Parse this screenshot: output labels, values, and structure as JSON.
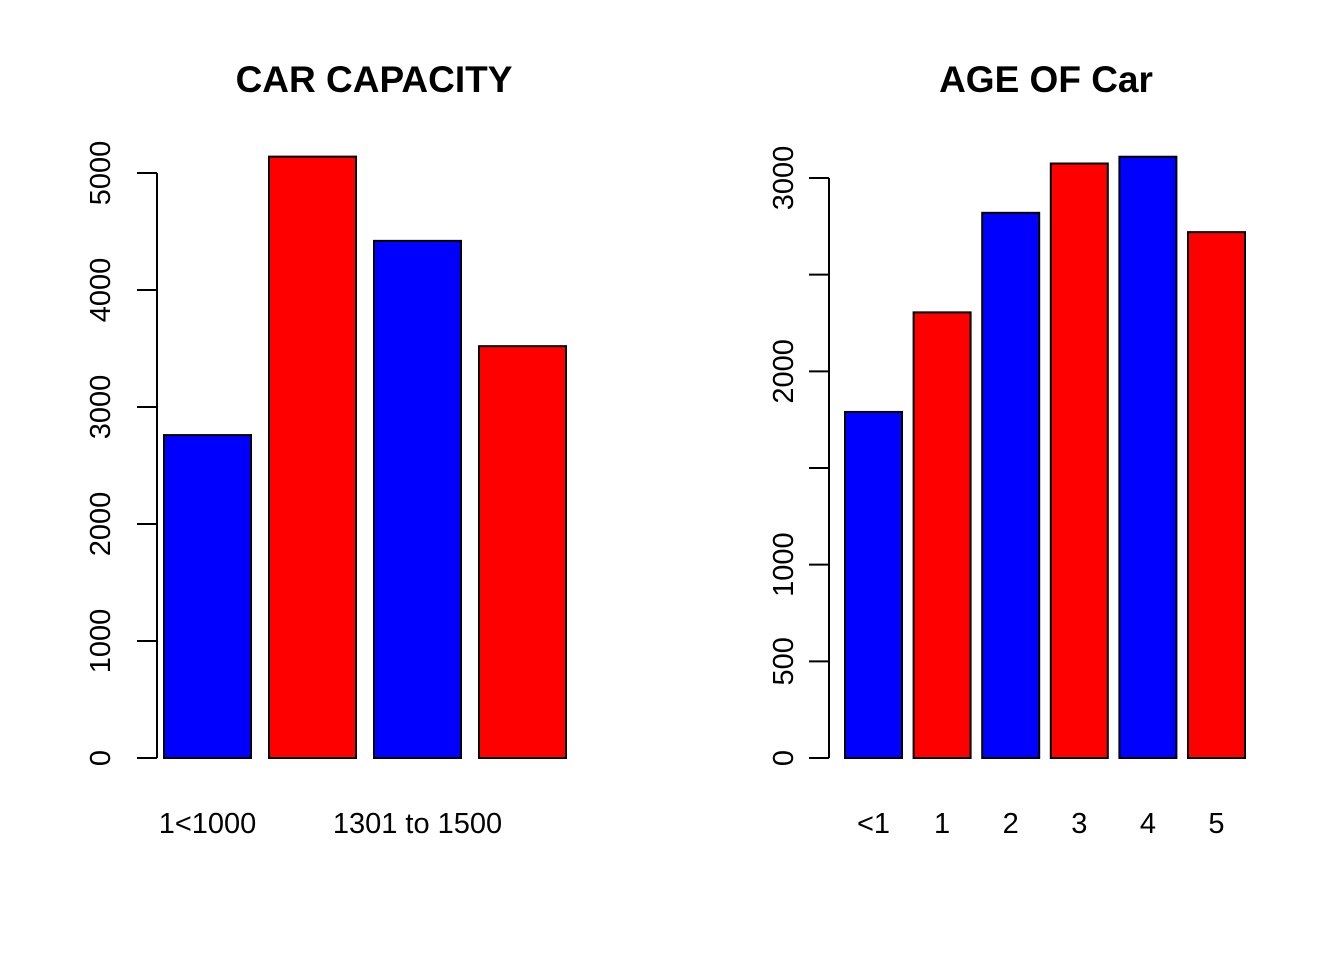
{
  "chart_data": [
    {
      "type": "bar",
      "title": "CAR CAPACITY",
      "categories": [
        "1<1000",
        "",
        "1301 to 1500",
        ""
      ],
      "values": [
        2760,
        5140,
        4420,
        3520
      ],
      "colors": [
        "#0000FF",
        "#FF0000",
        "#0000FF",
        "#FF0000"
      ],
      "ylim": [
        0,
        5000
      ],
      "yticks": [
        0,
        1000,
        2000,
        3000,
        4000,
        5000
      ],
      "ytick_labels": [
        "0",
        "1000",
        "2000",
        "3000",
        "4000",
        "5000"
      ],
      "xlabel": "",
      "ylabel": "",
      "grid": false,
      "legend": false
    },
    {
      "type": "bar",
      "title": "AGE OF Car",
      "categories": [
        "<1",
        "1",
        "2",
        "3",
        "4",
        "5"
      ],
      "values": [
        1790,
        2305,
        2820,
        3075,
        3110,
        2720
      ],
      "colors": [
        "#0000FF",
        "#FF0000",
        "#0000FF",
        "#FF0000",
        "#0000FF",
        "#FF0000"
      ],
      "ylim": [
        0,
        3000
      ],
      "yticks": [
        0,
        500,
        1000,
        1500,
        2000,
        2500,
        3000
      ],
      "ytick_labels": [
        "0",
        "500",
        "1000",
        "",
        "2000",
        "",
        "3000"
      ],
      "xlabel": "",
      "ylabel": "",
      "grid": false,
      "legend": false
    }
  ]
}
